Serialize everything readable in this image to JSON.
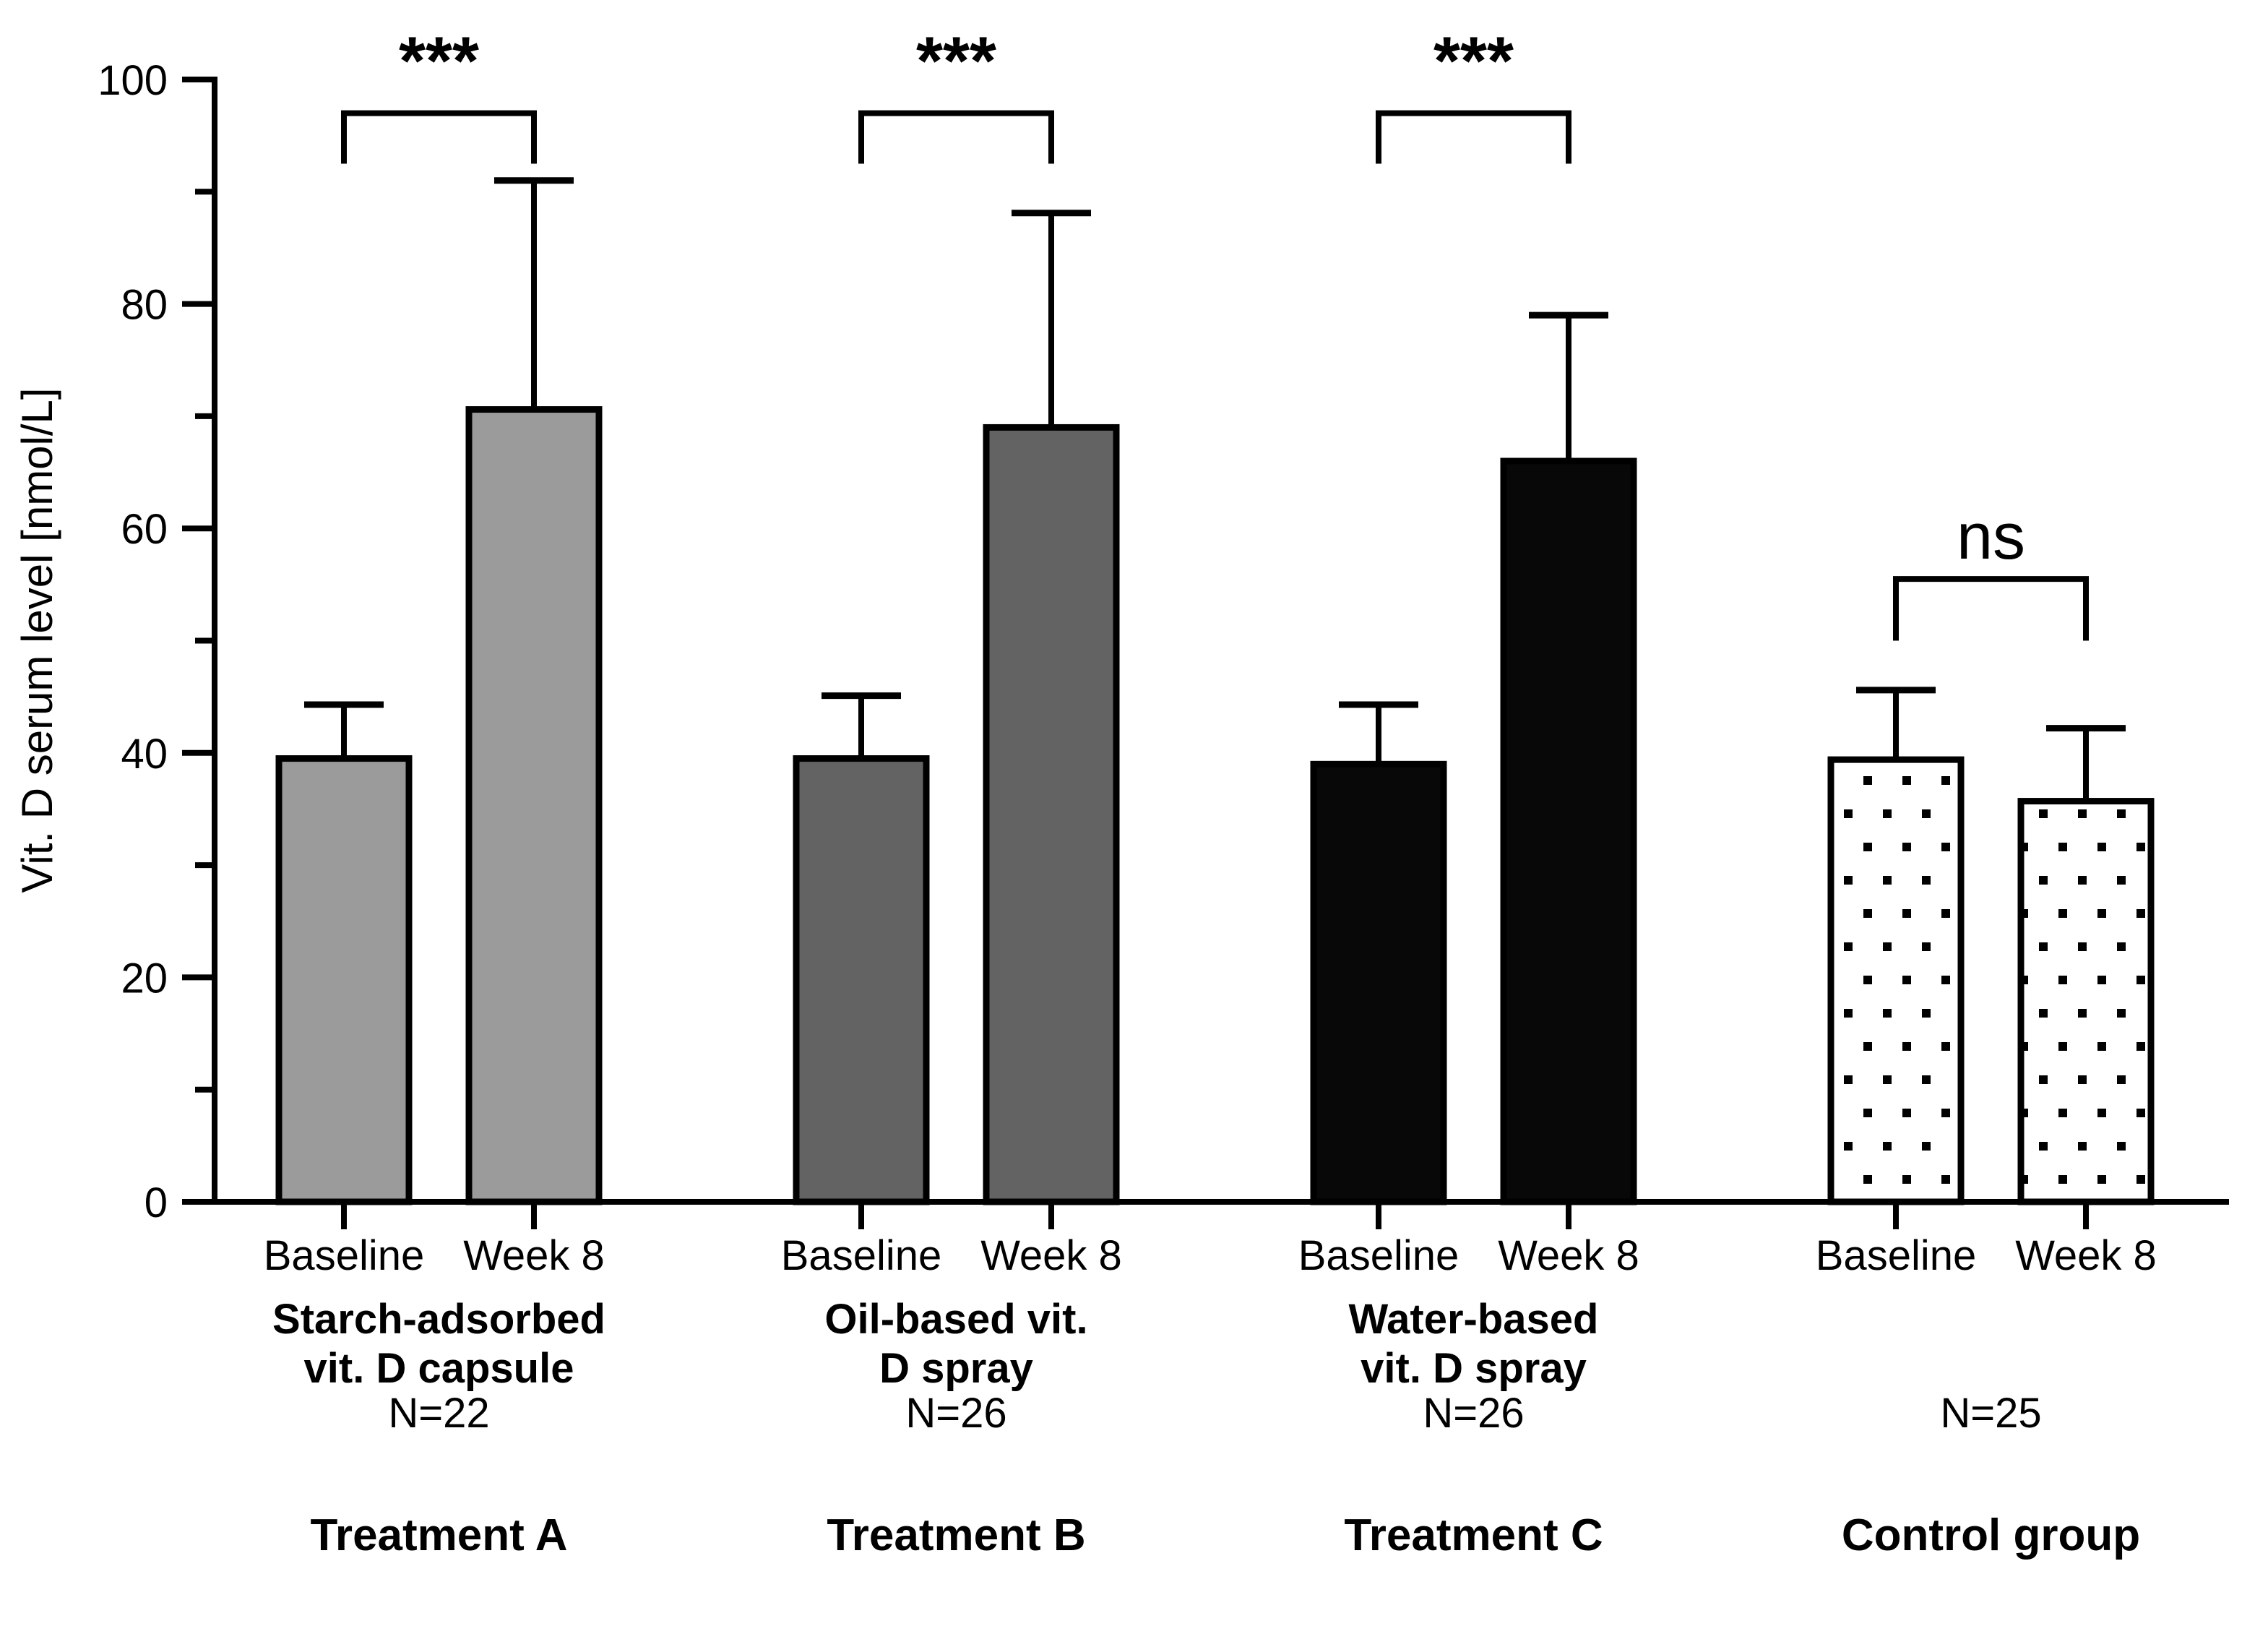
{
  "chart_data": {
    "type": "bar",
    "title": "",
    "ylabel": "Vit. D serum level [nmol/L]",
    "xlabel": "",
    "ylim": [
      0,
      100
    ],
    "yticks_major": [
      0,
      20,
      40,
      60,
      80,
      100
    ],
    "yticks_minor": [
      10,
      30,
      50,
      70,
      90
    ],
    "grid": "off",
    "legend": "none",
    "categories": [
      "Baseline",
      "Week 8"
    ],
    "error_bars": "upper SD whisker with cap",
    "colors": {
      "treatment_a_fill": "#9b9b9b",
      "treatment_b_fill": "#636363",
      "treatment_c_fill": "#080808",
      "control_fill": "#ffffff",
      "control_pattern": "black stipple dots",
      "bar_border": "#000000",
      "axis": "#000000"
    },
    "groups": [
      {
        "id": "treatment-a",
        "desc_lines": [
          "Starch-adsorbed",
          "vit. D capsule"
        ],
        "n_label": "N=22",
        "treatment_label": "Treatment A",
        "fill": "#9b9b9b",
        "pattern": "solid",
        "bars": [
          {
            "category": "Baseline",
            "mean": 39.5,
            "sd_upper": 4.8
          },
          {
            "category": "Week 8",
            "mean": 70.6,
            "sd_upper": 20.4
          }
        ],
        "significance": {
          "label": "***",
          "bracket_top_value": 97,
          "bracket_leg_value": 92.5
        }
      },
      {
        "id": "treatment-b",
        "desc_lines": [
          "Oil-based vit.",
          "D spray"
        ],
        "n_label": "N=26",
        "treatment_label": "Treatment B",
        "fill": "#636363",
        "pattern": "solid",
        "bars": [
          {
            "category": "Baseline",
            "mean": 39.5,
            "sd_upper": 5.6
          },
          {
            "category": "Week 8",
            "mean": 69.0,
            "sd_upper": 19.1
          }
        ],
        "significance": {
          "label": "***",
          "bracket_top_value": 97,
          "bracket_leg_value": 92.5
        }
      },
      {
        "id": "treatment-c",
        "desc_lines": [
          "Water-based",
          "vit. D spray"
        ],
        "n_label": "N=26",
        "treatment_label": "Treatment C",
        "fill": "#080808",
        "pattern": "solid",
        "bars": [
          {
            "category": "Baseline",
            "mean": 39.0,
            "sd_upper": 5.3
          },
          {
            "category": "Week 8",
            "mean": 66.0,
            "sd_upper": 13.0
          }
        ],
        "significance": {
          "label": "***",
          "bracket_top_value": 97,
          "bracket_leg_value": 92.5
        }
      },
      {
        "id": "control",
        "desc_lines": [],
        "n_label": "N=25",
        "treatment_label": "Control group",
        "fill": "#ffffff",
        "pattern": "dots",
        "bars": [
          {
            "category": "Baseline",
            "mean": 39.4,
            "sd_upper": 6.2
          },
          {
            "category": "Week 8",
            "mean": 35.7,
            "sd_upper": 6.5
          }
        ],
        "significance": {
          "label": "ns",
          "bracket_top_value": 55.5,
          "bracket_leg_value": 50
        }
      }
    ]
  }
}
